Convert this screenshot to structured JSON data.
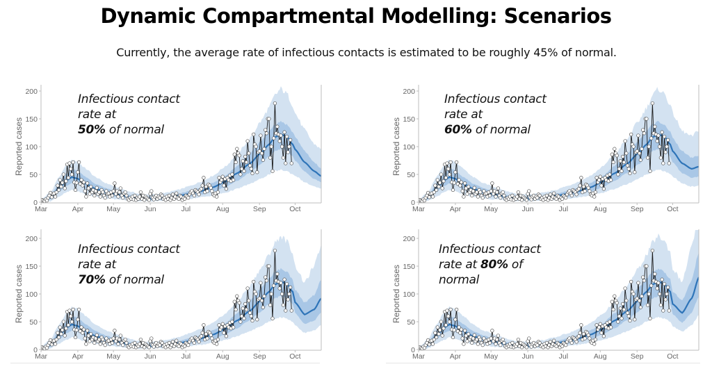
{
  "header": {
    "title": "Dynamic Compartmental Modelling: Scenarios",
    "subtitle": "Currently, the average rate of infectious contacts  is estimated to be roughly 45% of normal."
  },
  "colors": {
    "outer_band": "#d3e2f1",
    "inner_band": "#a9c7e6",
    "median_line": "#2e74b8",
    "observed_line": "#1a1a1a",
    "observed_marker_fill": "#ffffff",
    "observed_marker_stroke": "#555555",
    "axis": "#bdbdbd",
    "tick_label": "#666666"
  },
  "chart_data": [
    {
      "type": "line",
      "scenario": "50%",
      "annotation": {
        "line1": "Infectious contact",
        "line2": "rate at",
        "bold": "50%",
        "rest": " of normal"
      },
      "ylabel": "Reported cases",
      "xlabel": "",
      "ylim": [
        0,
        200
      ],
      "yticks": [
        0,
        50,
        100,
        150,
        200
      ],
      "xticks": [
        "Mar",
        "Apr",
        "May",
        "Jun",
        "Jul",
        "Aug",
        "Sep",
        "Oct"
      ],
      "xtick_days": [
        0,
        31,
        61,
        92,
        122,
        153,
        184,
        214
      ],
      "xlim_days": [
        0,
        236
      ],
      "model_tail": {
        "days": [
          214,
          222,
          230,
          236
        ],
        "median": [
          95,
          72,
          56,
          47
        ],
        "inner_low": [
          75,
          55,
          42,
          36
        ],
        "inner_high": [
          118,
          92,
          72,
          60
        ],
        "outer_low": [
          48,
          36,
          28,
          24
        ],
        "outer_high": [
          160,
          130,
          105,
          95
        ]
      }
    },
    {
      "type": "line",
      "scenario": "60%",
      "annotation": {
        "line1": "Infectious contact",
        "line2": "rate at",
        "bold": "60%",
        "rest": " of normal"
      },
      "ylabel": "Reported cases",
      "xlabel": "",
      "ylim": [
        0,
        200
      ],
      "yticks": [
        0,
        50,
        100,
        150,
        200
      ],
      "xticks": [
        "Mar",
        "Apr",
        "May",
        "Jun",
        "Jul",
        "Aug",
        "Sep",
        "Oct"
      ],
      "xtick_days": [
        0,
        31,
        61,
        92,
        122,
        153,
        184,
        214
      ],
      "xlim_days": [
        0,
        236
      ],
      "model_tail": {
        "days": [
          214,
          222,
          230,
          236
        ],
        "median": [
          92,
          70,
          60,
          64
        ],
        "inner_low": [
          72,
          52,
          44,
          46
        ],
        "inner_high": [
          115,
          92,
          80,
          84
        ],
        "outer_low": [
          46,
          34,
          28,
          30
        ],
        "outer_high": [
          160,
          128,
          118,
          130
        ]
      }
    },
    {
      "type": "line",
      "scenario": "70%",
      "annotation": {
        "line1": "Infectious contact",
        "line2": "rate at",
        "bold": "70%",
        "rest": " of normal"
      },
      "ylabel": "Reported cases",
      "xlabel": "",
      "ylim": [
        0,
        200
      ],
      "yticks": [
        0,
        50,
        100,
        150,
        200
      ],
      "xticks": [
        "Mar",
        "Apr",
        "May",
        "Jun",
        "Jul",
        "Aug",
        "Sep",
        "Oct"
      ],
      "xtick_days": [
        0,
        31,
        61,
        92,
        122,
        153,
        184,
        214
      ],
      "xlim_days": [
        0,
        236
      ],
      "model_tail": {
        "days": [
          214,
          222,
          230,
          236
        ],
        "median": [
          85,
          63,
          72,
          92
        ],
        "inner_low": [
          66,
          46,
          52,
          66
        ],
        "inner_high": [
          108,
          84,
          98,
          125
        ],
        "outer_low": [
          44,
          30,
          34,
          44
        ],
        "outer_high": [
          150,
          120,
          150,
          188
        ]
      }
    },
    {
      "type": "line",
      "scenario": "80%",
      "annotation": {
        "line1": "Infectious contact",
        "line2": "rate at ",
        "bold": "80%",
        "rest": " of",
        "line3": "normal"
      },
      "ylabel": "Reported cases",
      "xlabel": "",
      "ylim": [
        0,
        200
      ],
      "yticks": [
        0,
        50,
        100,
        150,
        200
      ],
      "xticks": [
        "Mar",
        "Apr",
        "May",
        "Jun",
        "Jul",
        "Aug",
        "Sep",
        "Oct"
      ],
      "xtick_days": [
        0,
        31,
        61,
        92,
        122,
        153,
        184,
        214
      ],
      "xlim_days": [
        0,
        236
      ],
      "model_tail": {
        "days": [
          214,
          222,
          230,
          236
        ],
        "median": [
          82,
          66,
          92,
          130
        ],
        "inner_low": [
          64,
          48,
          66,
          95
        ],
        "inner_high": [
          104,
          88,
          125,
          175
        ],
        "outer_low": [
          42,
          32,
          44,
          62
        ],
        "outer_high": [
          145,
          122,
          185,
          240
        ]
      }
    }
  ],
  "shared_series": {
    "model_common": {
      "days": [
        0,
        8,
        15,
        22,
        26,
        30,
        38,
        46,
        55,
        65,
        75,
        85,
        95,
        105,
        115,
        125,
        135,
        145,
        155,
        165,
        175,
        185,
        192,
        197,
        202,
        207,
        212
      ],
      "median": [
        2,
        8,
        25,
        40,
        45,
        43,
        33,
        24,
        18,
        13,
        9,
        6,
        6,
        8,
        11,
        15,
        20,
        27,
        37,
        52,
        68,
        88,
        104,
        117,
        122,
        118,
        104
      ],
      "inner_low": [
        1,
        5,
        18,
        30,
        34,
        32,
        24,
        17,
        12,
        9,
        6,
        4,
        4,
        5,
        7,
        10,
        14,
        19,
        27,
        38,
        52,
        68,
        82,
        92,
        96,
        93,
        82
      ],
      "inner_high": [
        3,
        12,
        34,
        52,
        60,
        58,
        45,
        33,
        25,
        18,
        13,
        9,
        9,
        11,
        15,
        20,
        26,
        35,
        47,
        65,
        86,
        110,
        128,
        140,
        145,
        140,
        126
      ],
      "outer_low": [
        0,
        2,
        10,
        18,
        22,
        20,
        14,
        10,
        7,
        5,
        3,
        2,
        2,
        3,
        4,
        6,
        9,
        12,
        17,
        24,
        32,
        42,
        50,
        56,
        58,
        56,
        50
      ],
      "outer_high": [
        5,
        18,
        45,
        68,
        76,
        74,
        60,
        45,
        34,
        26,
        19,
        14,
        14,
        17,
        22,
        29,
        37,
        48,
        64,
        86,
        112,
        145,
        170,
        192,
        204,
        195,
        175
      ]
    },
    "observed": {
      "days": [
        0,
        1,
        2,
        3,
        4,
        5,
        6,
        7,
        8,
        9,
        10,
        11,
        12,
        13,
        14,
        15,
        16,
        17,
        18,
        19,
        20,
        21,
        22,
        23,
        24,
        25,
        26,
        27,
        28,
        29,
        30,
        31,
        32,
        33,
        34,
        35,
        36,
        37,
        38,
        39,
        40,
        41,
        42,
        43,
        44,
        45,
        46,
        47,
        48,
        49,
        50,
        51,
        52,
        53,
        54,
        55,
        56,
        57,
        58,
        59,
        60,
        61,
        62,
        63,
        64,
        65,
        66,
        67,
        68,
        69,
        70,
        71,
        72,
        73,
        74,
        75,
        76,
        77,
        78,
        79,
        80,
        81,
        82,
        83,
        84,
        85,
        86,
        87,
        88,
        89,
        90,
        91,
        92,
        93,
        94,
        95,
        96,
        97,
        98,
        99,
        100,
        101,
        102,
        103,
        104,
        105,
        106,
        107,
        108,
        109,
        110,
        111,
        112,
        113,
        114,
        115,
        116,
        117,
        118,
        119,
        120,
        121,
        122,
        123,
        124,
        125,
        126,
        127,
        128,
        129,
        130,
        131,
        132,
        133,
        134,
        135,
        136,
        137,
        138,
        139,
        140,
        141,
        142,
        143,
        144,
        145,
        146,
        147,
        148,
        149,
        150,
        151,
        152,
        153,
        154,
        155,
        156,
        157,
        158,
        159,
        160,
        161,
        162,
        163,
        164,
        165,
        166,
        167,
        168,
        169,
        170,
        171,
        172,
        173,
        174,
        175,
        176,
        177,
        178,
        179,
        180,
        181,
        182,
        183,
        184,
        185,
        186,
        187,
        188,
        189,
        190,
        191,
        192,
        193,
        194,
        195,
        196,
        197,
        198,
        199,
        200,
        201,
        202,
        203,
        204,
        205,
        206,
        207,
        208,
        209,
        210,
        211
      ],
      "cases": [
        2,
        4,
        3,
        2,
        5,
        3,
        8,
        12,
        17,
        9,
        15,
        16,
        10,
        18,
        30,
        22,
        40,
        28,
        35,
        50,
        25,
        38,
        68,
        44,
        70,
        60,
        50,
        72,
        36,
        22,
        35,
        54,
        72,
        33,
        40,
        30,
        36,
        20,
        10,
        34,
        25,
        15,
        28,
        18,
        22,
        12,
        20,
        26,
        15,
        18,
        10,
        22,
        18,
        12,
        8,
        20,
        15,
        16,
        10,
        18,
        12,
        20,
        34,
        15,
        20,
        10,
        18,
        25,
        12,
        8,
        16,
        18,
        12,
        6,
        4,
        8,
        6,
        10,
        5,
        12,
        4,
        8,
        6,
        10,
        18,
        6,
        12,
        4,
        10,
        8,
        6,
        4,
        15,
        20,
        8,
        5,
        10,
        12,
        6,
        10,
        8,
        14,
        12,
        6,
        8,
        4,
        10,
        6,
        12,
        4,
        8,
        14,
        6,
        10,
        16,
        8,
        6,
        12,
        10,
        4,
        8,
        6,
        12,
        10,
        8,
        14,
        18,
        20,
        16,
        12,
        22,
        20,
        18,
        14,
        22,
        24,
        30,
        44,
        18,
        28,
        20,
        32,
        30,
        26,
        20,
        14,
        12,
        16,
        10,
        18,
        44,
        36,
        40,
        46,
        30,
        42,
        24,
        44,
        40,
        48,
        38,
        50,
        40,
        86,
        72,
        96,
        88,
        84,
        50,
        60,
        74,
        56,
        82,
        72,
        110,
        88,
        66,
        60,
        52,
        122,
        104,
        100,
        54,
        90,
        92,
        120,
        88,
        76,
        96,
        130,
        124,
        150,
        150,
        80,
        100,
        56,
        115,
        178,
        124,
        136,
        122,
        110,
        120,
        100,
        80,
        126,
        70,
        118,
        90,
        100,
        112,
        70,
        78
      ]
    }
  },
  "panels": [
    {
      "id": "panel-50"
    },
    {
      "id": "panel-60"
    },
    {
      "id": "panel-70"
    },
    {
      "id": "panel-80"
    }
  ]
}
